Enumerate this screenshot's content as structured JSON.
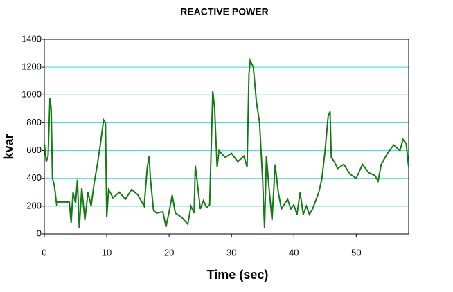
{
  "chart_data": {
    "type": "line",
    "title": "REACTIVE POWER",
    "x_label": "Time (sec)",
    "y_label": "kvar",
    "x": [
      0,
      0.3,
      0.6,
      0.9,
      1.1,
      1.3,
      1.6,
      2,
      2.1,
      4,
      4.3,
      4.6,
      5,
      5.3,
      5.6,
      6,
      6.5,
      7,
      7.5,
      8,
      8.5,
      9,
      9.5,
      9.8,
      10,
      10.3,
      11,
      12,
      13,
      14,
      15,
      16,
      16.5,
      16.8,
      17,
      17.5,
      18,
      19,
      19.5,
      20,
      20.5,
      21,
      22,
      23,
      23.5,
      24,
      24.2,
      24.5,
      25,
      25.5,
      26,
      26.5,
      26.8,
      27,
      27.3,
      27.7,
      28,
      29,
      30,
      31,
      32,
      32.5,
      32.8,
      33,
      33.5,
      34,
      34.5,
      35,
      35.3,
      35.6,
      36,
      36.5,
      37,
      37.5,
      38,
      39,
      39.5,
      40,
      40.5,
      41,
      41.5,
      42,
      42.5,
      43,
      44,
      44.5,
      45,
      45.5,
      45.8,
      46,
      46.5,
      47,
      48,
      49,
      50,
      51,
      52,
      53,
      53.5,
      54,
      55,
      56,
      57,
      57.5,
      58,
      58.4
    ],
    "series": [
      {
        "color": "#187818",
        "values": [
          650,
          520,
          560,
          980,
          900,
          400,
          350,
          200,
          230,
          230,
          80,
          300,
          220,
          390,
          40,
          330,
          100,
          300,
          200,
          370,
          500,
          650,
          820,
          800,
          120,
          320,
          260,
          300,
          250,
          320,
          280,
          200,
          480,
          560,
          400,
          170,
          150,
          160,
          50,
          160,
          280,
          150,
          120,
          70,
          200,
          150,
          490,
          380,
          180,
          240,
          190,
          210,
          700,
          1030,
          900,
          480,
          600,
          550,
          580,
          520,
          560,
          480,
          1150,
          1250,
          1200,
          950,
          800,
          380,
          40,
          560,
          340,
          100,
          500,
          300,
          180,
          250,
          180,
          210,
          140,
          300,
          140,
          200,
          140,
          180,
          300,
          400,
          600,
          850,
          880,
          550,
          520,
          470,
          500,
          430,
          400,
          500,
          440,
          420,
          380,
          500,
          580,
          640,
          600,
          680,
          650,
          480
        ]
      }
    ],
    "xlim": [
      0,
      58.4
    ],
    "ylim": [
      0,
      1400
    ],
    "xticks": [
      0,
      10,
      20,
      30,
      40,
      50
    ],
    "yticks": [
      0,
      200,
      400,
      600,
      800,
      1000,
      1200,
      1400
    ],
    "grid": true,
    "grid_color": "#33d6d6"
  }
}
